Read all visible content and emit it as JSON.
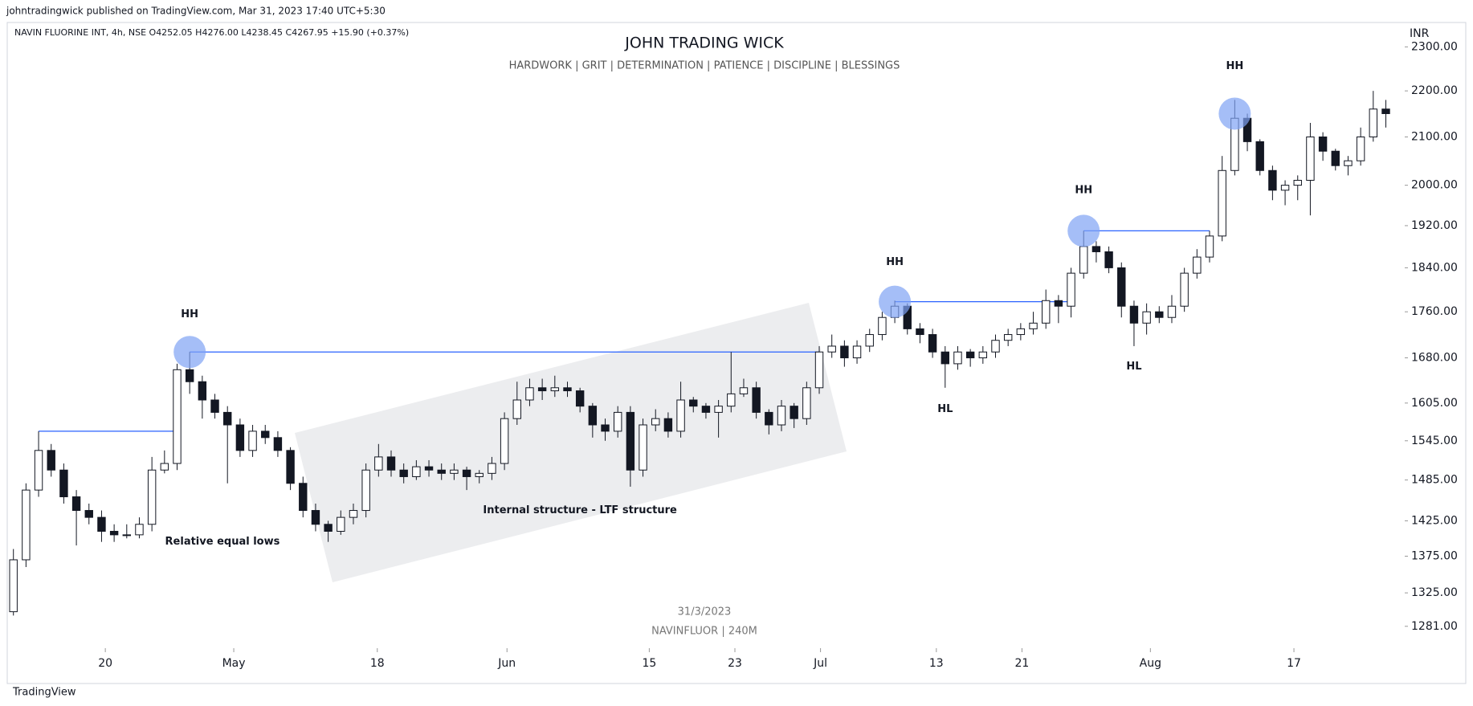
{
  "header": {
    "publisher": "johntradingwick published on TradingView.com, Mar 31, 2023 17:40 UTC+5:30",
    "footer": "TradingView"
  },
  "chart_data": {
    "type": "candlestick",
    "symbol": "NAVIN FLUORINE INT, 4h, NSE  O4252.05  H4276.00  L4238.45  C4267.95  +15.90 (+0.37%)",
    "title": "JOHN TRADING WICK",
    "subtitle": "HARDWORK  |  GRIT  |  DETERMINATION  |  PATIENCE  |  DISCIPLINE  |  BLESSINGS",
    "currency": "INR",
    "watermark": [
      "31/3/2023",
      "NAVINFLUOR | 240M"
    ],
    "log_scale": true,
    "up_color": "#ffffff",
    "down_color": "#131722",
    "border_color": "#131722",
    "open": [
      1300,
      1370,
      1470,
      1530,
      1500,
      1460,
      1440,
      1430,
      1410,
      1405,
      1405,
      1420,
      1500,
      1510,
      1660,
      1640,
      1610,
      1590,
      1570,
      1530,
      1560,
      1550,
      1530,
      1480,
      1440,
      1420,
      1410,
      1430,
      1440,
      1500,
      1520,
      1500,
      1490,
      1505,
      1500,
      1495,
      1500,
      1490,
      1495,
      1510,
      1580,
      1610,
      1630,
      1625,
      1630,
      1625,
      1600,
      1570,
      1560,
      1590,
      1500,
      1570,
      1580,
      1560,
      1610,
      1600,
      1590,
      1600,
      1620,
      1630,
      1590,
      1570,
      1600,
      1580,
      1630,
      1690,
      1700,
      1680,
      1700,
      1720,
      1750,
      1770,
      1730,
      1720,
      1690,
      1670,
      1690,
      1680,
      1690,
      1710,
      1720,
      1730,
      1740,
      1780,
      1770,
      1830,
      1880,
      1870,
      1840,
      1770,
      1740,
      1760,
      1750,
      1770,
      1830,
      1860,
      1900,
      2030,
      2140,
      2090,
      2030,
      1990,
      2000,
      2010,
      2100,
      2070,
      2040,
      2050,
      2100,
      2160
    ],
    "high": [
      1385,
      1480,
      1560,
      1540,
      1510,
      1470,
      1450,
      1440,
      1420,
      1420,
      1430,
      1520,
      1530,
      1670,
      1690,
      1650,
      1620,
      1600,
      1580,
      1570,
      1570,
      1560,
      1535,
      1490,
      1450,
      1425,
      1440,
      1450,
      1510,
      1540,
      1530,
      1510,
      1515,
      1515,
      1510,
      1510,
      1505,
      1500,
      1520,
      1590,
      1640,
      1645,
      1645,
      1650,
      1640,
      1630,
      1605,
      1580,
      1600,
      1600,
      1580,
      1595,
      1590,
      1640,
      1615,
      1605,
      1610,
      1690,
      1645,
      1640,
      1595,
      1610,
      1605,
      1640,
      1700,
      1720,
      1710,
      1710,
      1730,
      1760,
      1780,
      1775,
      1740,
      1730,
      1700,
      1700,
      1695,
      1700,
      1720,
      1730,
      1740,
      1760,
      1800,
      1790,
      1840,
      1910,
      1890,
      1880,
      1850,
      1780,
      1775,
      1770,
      1790,
      1840,
      1875,
      1910,
      2060,
      2180,
      2150,
      2095,
      2040,
      2010,
      2020,
      2130,
      2110,
      2075,
      2060,
      2120,
      2200,
      2180
    ],
    "low": [
      1295,
      1360,
      1460,
      1490,
      1450,
      1390,
      1420,
      1395,
      1395,
      1400,
      1400,
      1410,
      1495,
      1500,
      1620,
      1580,
      1580,
      1480,
      1520,
      1520,
      1540,
      1520,
      1470,
      1430,
      1410,
      1395,
      1405,
      1420,
      1430,
      1490,
      1490,
      1480,
      1485,
      1490,
      1485,
      1485,
      1470,
      1480,
      1485,
      1500,
      1570,
      1600,
      1610,
      1615,
      1615,
      1590,
      1550,
      1545,
      1550,
      1475,
      1490,
      1560,
      1550,
      1550,
      1590,
      1580,
      1550,
      1590,
      1615,
      1580,
      1555,
      1560,
      1565,
      1570,
      1620,
      1680,
      1665,
      1670,
      1690,
      1710,
      1740,
      1720,
      1705,
      1680,
      1630,
      1660,
      1665,
      1670,
      1680,
      1700,
      1710,
      1720,
      1730,
      1740,
      1750,
      1820,
      1850,
      1830,
      1750,
      1700,
      1720,
      1740,
      1740,
      1760,
      1820,
      1850,
      1890,
      2020,
      2070,
      2020,
      1970,
      1960,
      1970,
      1940,
      2050,
      2030,
      2020,
      2040,
      2090,
      2120
    ],
    "close": [
      1370,
      1470,
      1530,
      1500,
      1460,
      1440,
      1430,
      1410,
      1405,
      1405,
      1420,
      1500,
      1510,
      1660,
      1640,
      1610,
      1590,
      1570,
      1530,
      1560,
      1550,
      1530,
      1480,
      1440,
      1420,
      1410,
      1430,
      1440,
      1500,
      1520,
      1500,
      1490,
      1505,
      1500,
      1495,
      1500,
      1490,
      1495,
      1510,
      1580,
      1610,
      1630,
      1625,
      1630,
      1625,
      1600,
      1570,
      1560,
      1590,
      1500,
      1570,
      1580,
      1560,
      1610,
      1600,
      1590,
      1600,
      1620,
      1630,
      1590,
      1570,
      1600,
      1580,
      1630,
      1690,
      1700,
      1680,
      1700,
      1720,
      1750,
      1770,
      1730,
      1720,
      1690,
      1670,
      1690,
      1680,
      1690,
      1710,
      1720,
      1730,
      1740,
      1780,
      1770,
      1830,
      1880,
      1870,
      1840,
      1770,
      1740,
      1760,
      1750,
      1770,
      1830,
      1860,
      1900,
      2030,
      2140,
      2090,
      2030,
      1990,
      2000,
      2010,
      2100,
      2070,
      2040,
      2050,
      2100,
      2160,
      2150
    ],
    "xlim": [
      -0.3,
      110.5
    ],
    "xticks": [
      {
        "value": 7.3,
        "label": "20"
      },
      {
        "value": 17.5,
        "label": "May"
      },
      {
        "value": 28.9,
        "label": "18"
      },
      {
        "value": 39.2,
        "label": "Jun"
      },
      {
        "value": 50.5,
        "label": "15"
      },
      {
        "value": 57.3,
        "label": "23"
      },
      {
        "value": 64.1,
        "label": "Jul"
      },
      {
        "value": 73.3,
        "label": "13"
      },
      {
        "value": 80.1,
        "label": "21"
      },
      {
        "value": 90.3,
        "label": "Aug"
      },
      {
        "value": 101.7,
        "label": "17"
      }
    ],
    "ylim": [
      1253,
      2344
    ],
    "yticks": [
      {
        "value": 2300,
        "label": "2300.00"
      },
      {
        "value": 2200,
        "label": "2200.00"
      },
      {
        "value": 2100,
        "label": "2100.00"
      },
      {
        "value": 2000,
        "label": "2000.00"
      },
      {
        "value": 1920,
        "label": "1920.00"
      },
      {
        "value": 1840,
        "label": "1840.00"
      },
      {
        "value": 1760,
        "label": "1760.00"
      },
      {
        "value": 1680,
        "label": "1680.00"
      },
      {
        "value": 1605,
        "label": "1605.00"
      },
      {
        "value": 1545,
        "label": "1545.00"
      },
      {
        "value": 1485,
        "label": "1485.00"
      },
      {
        "value": 1425,
        "label": "1425.00"
      },
      {
        "value": 1375,
        "label": "1375.00"
      },
      {
        "value": 1325,
        "label": "1325.00"
      },
      {
        "value": 1281,
        "label": "1281.00"
      }
    ],
    "levels": [
      {
        "value": 1560,
        "from": 2,
        "to": 13
      },
      {
        "value": 1690,
        "from": 14,
        "to": 64
      },
      {
        "value": 1778,
        "from": 70,
        "to": 84
      },
      {
        "value": 1910,
        "from": 85,
        "to": 95
      }
    ],
    "highlights": [
      {
        "index": 14,
        "value": 1690
      },
      {
        "index": 70,
        "value": 1778
      },
      {
        "index": 85,
        "value": 1910
      },
      {
        "index": 97,
        "value": 2150
      }
    ],
    "annotations": [
      {
        "text": "HH",
        "index": 14,
        "value": 1755
      },
      {
        "text": "HH",
        "index": 70,
        "value": 1850
      },
      {
        "text": "HH",
        "index": 85,
        "value": 1990
      },
      {
        "text": "HH",
        "index": 97,
        "value": 2255
      },
      {
        "text": "HL",
        "index": 74,
        "value": 1595
      },
      {
        "text": "HL",
        "index": 89,
        "value": 1665
      },
      {
        "text": "Relative equal lows",
        "index": 16.6,
        "value": 1395
      },
      {
        "text": "Internal structure - LTF structure",
        "index": 45,
        "value": 1440
      }
    ]
  }
}
